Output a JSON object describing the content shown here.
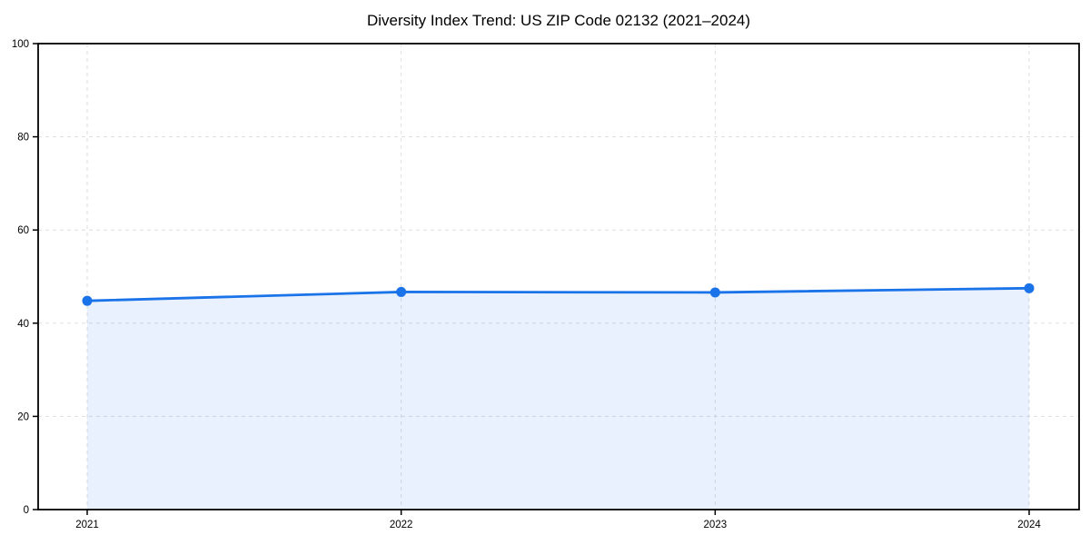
{
  "chart_data": {
    "type": "line",
    "title": "Diversity Index Trend: US ZIP Code 02132 (2021–2024)",
    "categories": [
      "2021",
      "2022",
      "2023",
      "2024"
    ],
    "series": [
      {
        "name": "Diversity Index",
        "values": [
          44.8,
          46.7,
          46.6,
          47.5
        ]
      }
    ],
    "xlabel": "",
    "ylabel": "",
    "ylim": [
      0,
      100
    ],
    "yticks": [
      0,
      20,
      40,
      60,
      80,
      100
    ],
    "grid": "dashed",
    "legend_position": "none",
    "colors": {
      "line": "#1a73e8",
      "marker": "#1a73e8",
      "area_fill_rgba": "rgba(26,115,232,0.10)",
      "gridline": "#dedede",
      "axis": "#000000",
      "background": "#ffffff"
    }
  }
}
